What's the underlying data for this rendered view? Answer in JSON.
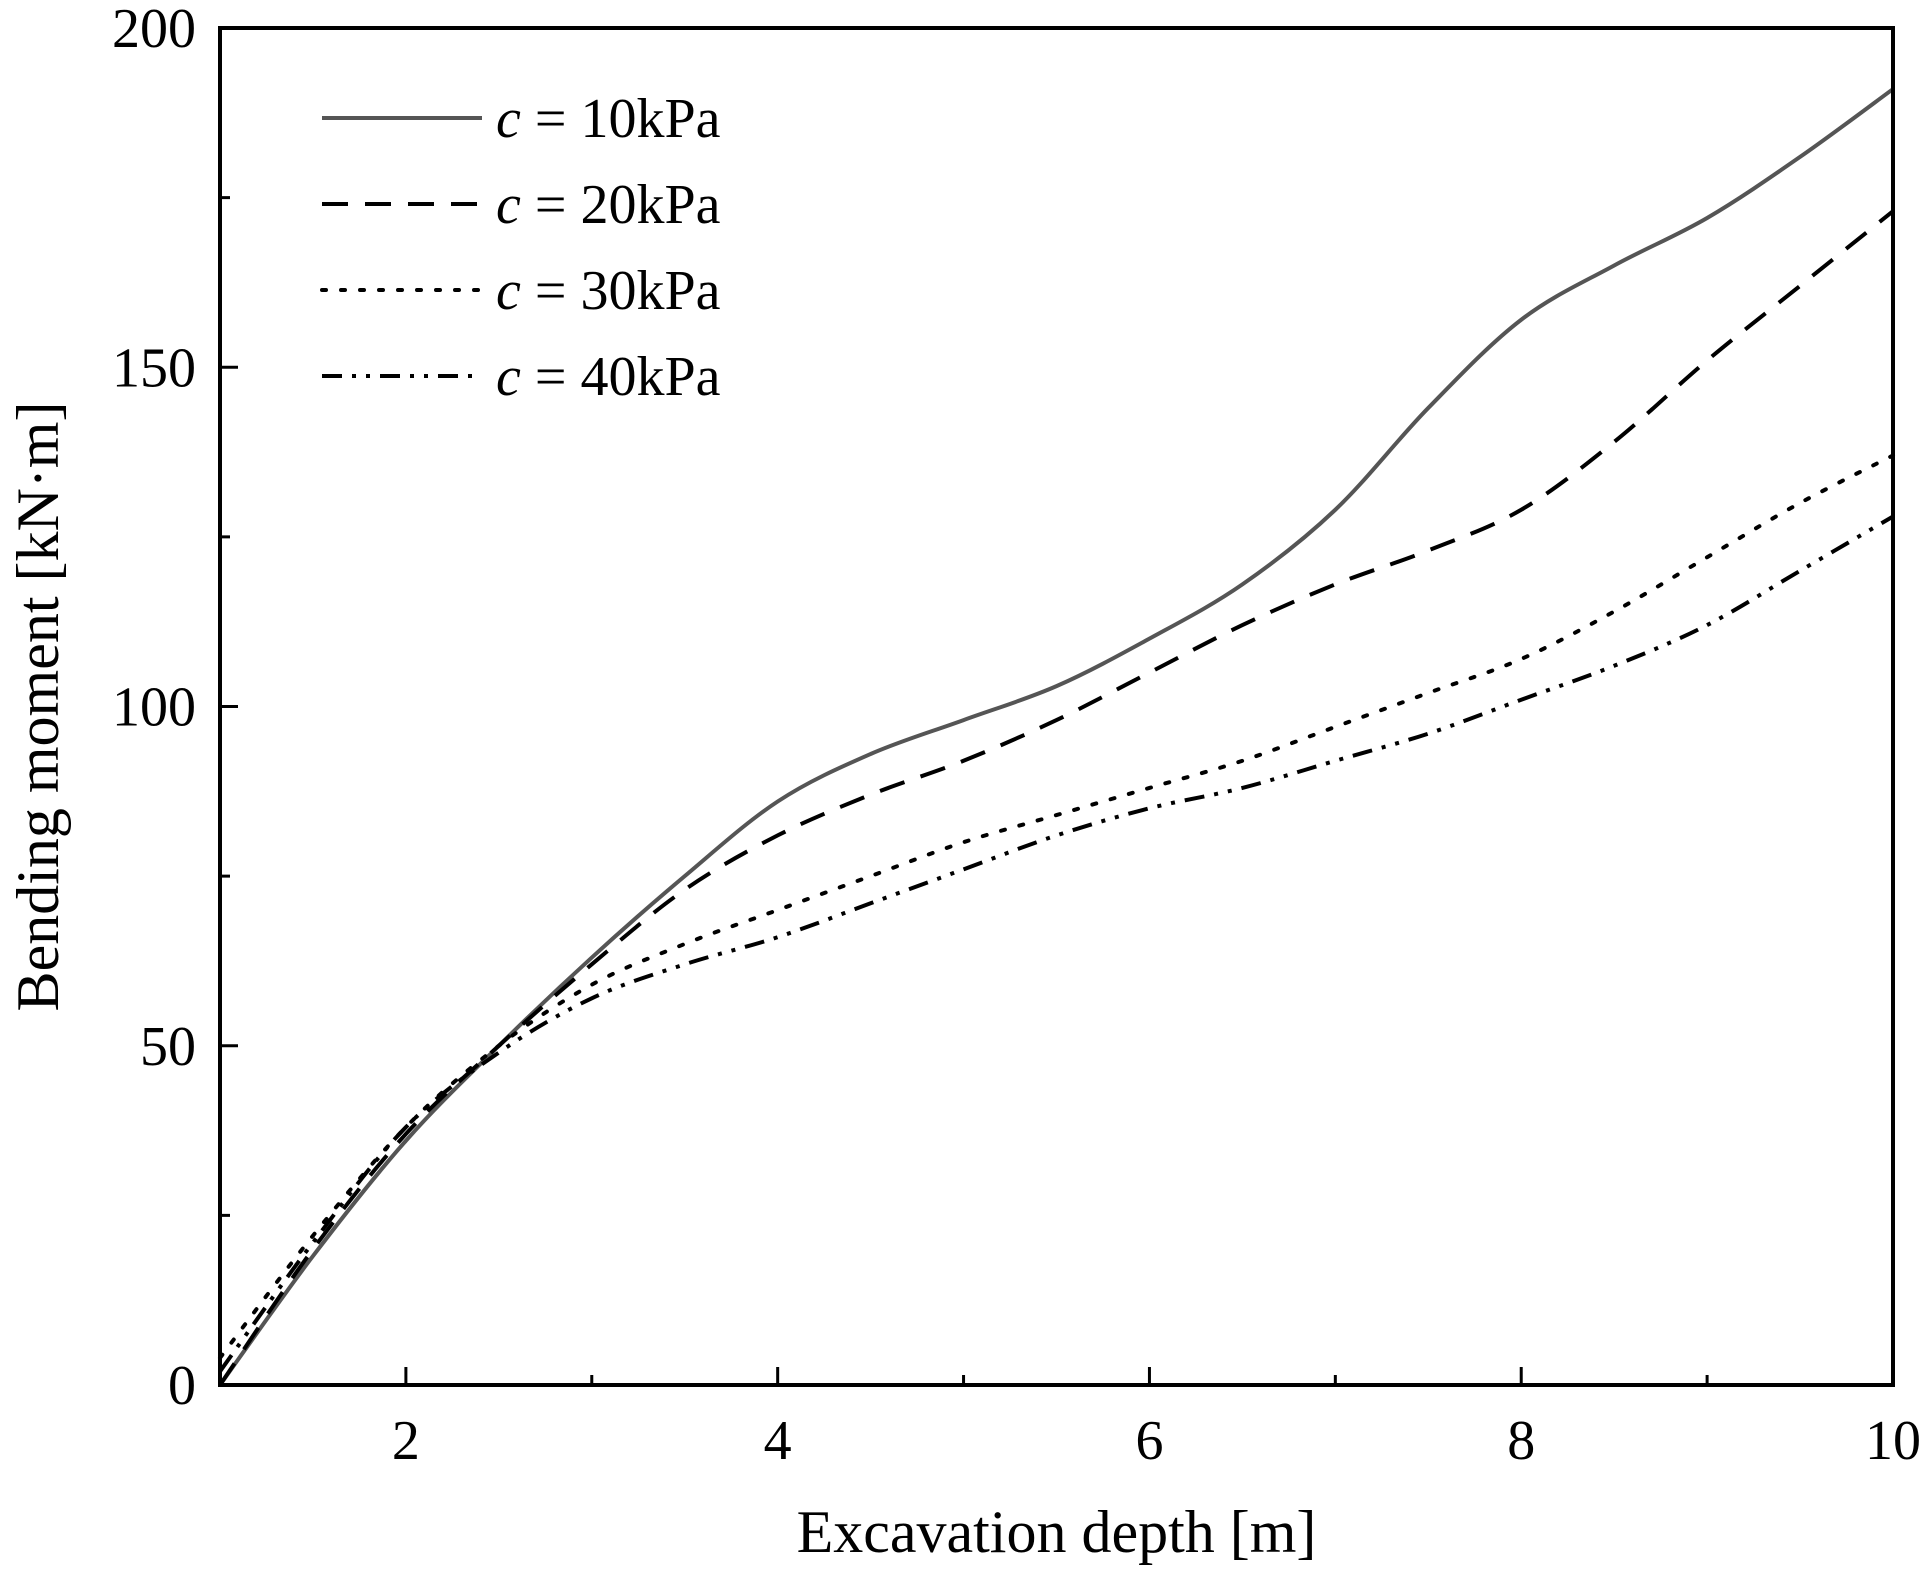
{
  "chart_data": {
    "type": "line",
    "xlabel": "Excavation depth [m]",
    "ylabel": "Bending moment [kN·m]",
    "xlim": [
      1,
      10
    ],
    "ylim": [
      0,
      200
    ],
    "x_ticks": [
      2,
      4,
      6,
      8,
      10
    ],
    "y_ticks": [
      0,
      50,
      100,
      150,
      200
    ],
    "x_ticks_minor": [
      3,
      5,
      7,
      9
    ],
    "y_ticks_minor": [
      25,
      75,
      125,
      175
    ],
    "legend_position": "top-left",
    "series": [
      {
        "name": "c = 10kPa",
        "legend_var": "c",
        "legend_rest": " = 10kPa",
        "style": "solid",
        "color": "#555555",
        "x": [
          1.0,
          1.5,
          2.0,
          2.5,
          3.0,
          3.5,
          4.0,
          4.5,
          5.0,
          5.5,
          6.0,
          6.5,
          7.0,
          7.5,
          8.0,
          8.5,
          9.0,
          9.5,
          10.0
        ],
        "y": [
          0,
          19,
          36,
          50,
          63,
          75,
          86,
          93,
          98,
          103,
          110,
          118,
          129,
          144,
          157,
          165,
          172,
          181,
          191
        ]
      },
      {
        "name": "c = 20kPa",
        "legend_var": "c",
        "legend_rest": " = 20kPa",
        "style": "dashed",
        "color": "#000000",
        "x": [
          1.0,
          1.5,
          2.0,
          2.5,
          3.0,
          3.5,
          4.0,
          4.5,
          5.0,
          5.5,
          6.0,
          6.5,
          7.0,
          7.5,
          8.0,
          8.5,
          9.0,
          9.5,
          10.0
        ],
        "y": [
          0,
          20,
          37,
          50,
          62,
          73,
          81,
          87,
          92,
          98,
          105,
          112,
          118,
          123,
          129,
          139,
          151,
          162,
          173
        ]
      },
      {
        "name": "c = 30kPa",
        "legend_var": "c",
        "legend_rest": " = 30kPa",
        "style": "dotted",
        "color": "#000000",
        "x": [
          1.0,
          1.5,
          2.0,
          2.5,
          3.0,
          3.5,
          4.0,
          4.5,
          5.0,
          5.5,
          6.0,
          6.5,
          7.0,
          7.5,
          8.0,
          8.5,
          9.0,
          9.5,
          10.0
        ],
        "y": [
          4,
          22,
          38,
          50,
          59,
          65,
          70,
          75,
          80,
          84,
          88,
          92,
          97,
          102,
          107,
          114,
          122,
          130,
          137
        ]
      },
      {
        "name": "c = 40kPa",
        "legend_var": "c",
        "legend_rest": " = 40kPa",
        "style": "dash-dot-dot",
        "color": "#000000",
        "x": [
          1.0,
          1.5,
          2.0,
          2.5,
          3.0,
          3.5,
          4.0,
          4.5,
          5.0,
          5.5,
          6.0,
          6.5,
          7.0,
          7.5,
          8.0,
          8.5,
          9.0,
          9.5,
          10.0
        ],
        "y": [
          2,
          21,
          38,
          49,
          57,
          62,
          66,
          71,
          76,
          81,
          85,
          88,
          92,
          96,
          101,
          106,
          112,
          120,
          128
        ]
      }
    ]
  }
}
